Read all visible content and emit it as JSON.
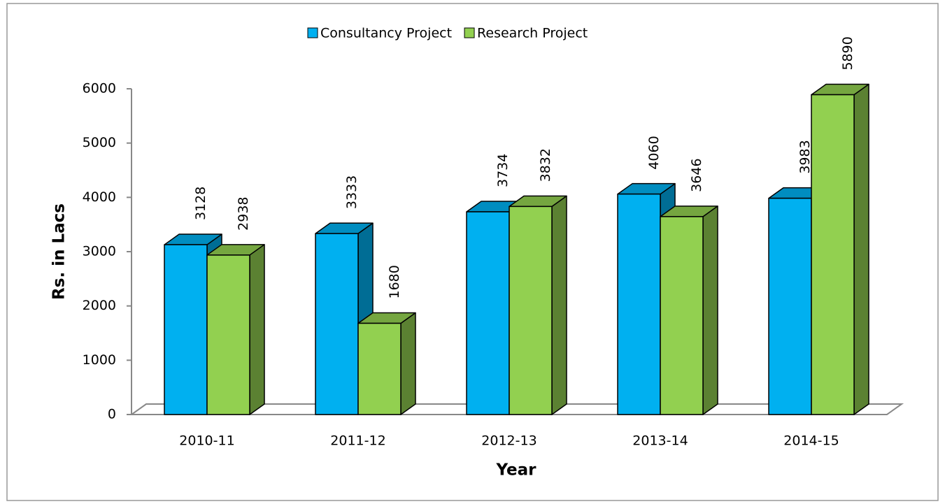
{
  "chart_data": {
    "type": "bar3d",
    "categories": [
      "2010-11",
      "2011-12",
      "2012-13",
      "2013-14",
      "2014-15"
    ],
    "series": [
      {
        "name": "Consultancy Project",
        "color": "#00b0f0",
        "values": [
          3128,
          3333,
          3734,
          4060,
          3983
        ]
      },
      {
        "name": "Research Project",
        "color": "#92d050",
        "values": [
          2938,
          1680,
          3832,
          3646,
          5890
        ]
      }
    ],
    "ylim": [
      0,
      6000
    ],
    "yticks": [
      0,
      1000,
      2000,
      3000,
      4000,
      5000,
      6000
    ],
    "y_label": "Rs. in Lacs",
    "x_label": "Year",
    "legend": "top"
  }
}
